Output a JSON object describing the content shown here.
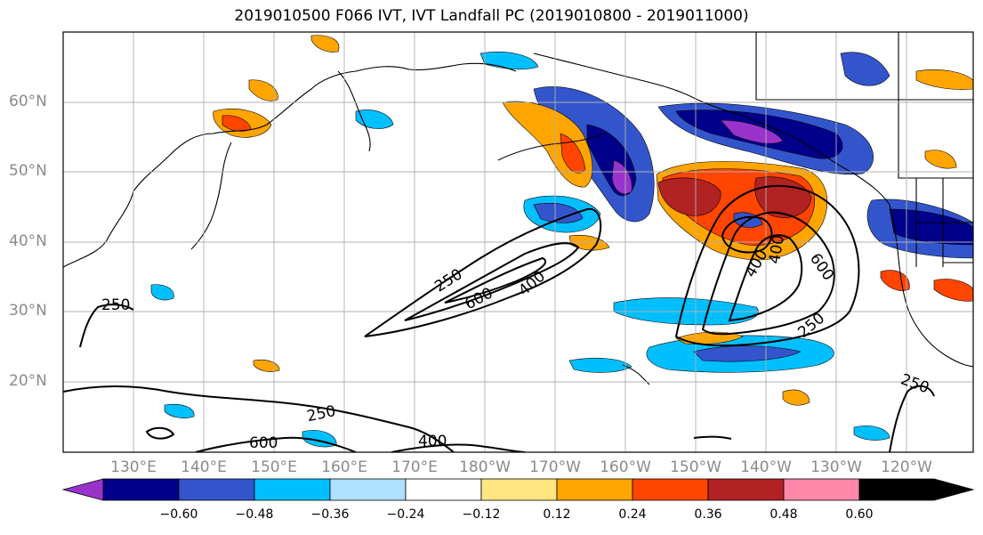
{
  "title": "2019010500 F066 IVT, IVT Landfall PC (2019010800 - 2019011000)",
  "lat_ticks": [
    "60°N",
    "50°N",
    "40°N",
    "30°N",
    "20°N"
  ],
  "lon_ticks": [
    "130°E",
    "140°E",
    "150°E",
    "160°E",
    "170°E",
    "180°W",
    "170°W",
    "160°W",
    "150°W",
    "140°W",
    "130°W",
    "120°W"
  ],
  "contour_labels": [
    "250",
    "600",
    "400",
    "250",
    "400",
    "400",
    "600",
    "250",
    "250",
    "250",
    "600",
    "400"
  ],
  "colorbar": {
    "labels": [
      "−0.60",
      "−0.48",
      "−0.36",
      "−0.24",
      "−0.12",
      "0.12",
      "0.24",
      "0.36",
      "0.48",
      "0.60"
    ],
    "colors": [
      "#9933cc",
      "#00008b",
      "#3355cc",
      "#00bfff",
      "#aee0ff",
      "#ffffff",
      "#ffe680",
      "#ffa500",
      "#ff4500",
      "#b22222",
      "#ff88aa"
    ]
  }
}
